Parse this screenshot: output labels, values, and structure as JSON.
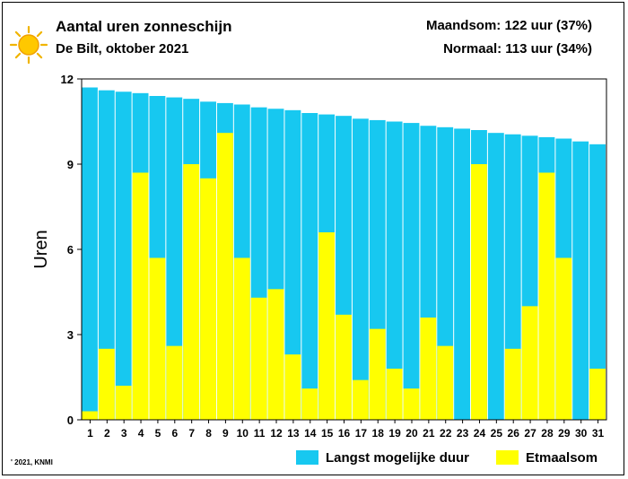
{
  "header": {
    "title": "Aantal uren zonneschijn",
    "subtitle": "De Bilt, oktober 2021",
    "month_total": "Maandsom: 122 uur (37%)",
    "normal": "Normaal: 113 uur (34%)"
  },
  "footer": {
    "copyright": "' 2021, KNMI"
  },
  "icons": {
    "logo": "sun-icon"
  },
  "colors": {
    "possible": "#17c8f0",
    "actual": "#ffff00",
    "axis": "#000000"
  },
  "chart_data": {
    "type": "bar",
    "title": "Aantal uren zonneschijn",
    "subtitle": "De Bilt, oktober 2021",
    "ylabel": "Uren",
    "xlabel": "",
    "ylim": [
      0,
      12
    ],
    "yticks": [
      0,
      3,
      6,
      9,
      12
    ],
    "grid": false,
    "legend_placement": "bottom",
    "overlay": true,
    "categories": [
      "1",
      "2",
      "3",
      "4",
      "5",
      "6",
      "7",
      "8",
      "9",
      "10",
      "11",
      "12",
      "13",
      "14",
      "15",
      "16",
      "17",
      "18",
      "19",
      "20",
      "21",
      "22",
      "23",
      "24",
      "25",
      "26",
      "27",
      "28",
      "29",
      "30",
      "31"
    ],
    "series": [
      {
        "name": "Langst mogelijke duur",
        "color": "#17c8f0",
        "values": [
          11.7,
          11.6,
          11.55,
          11.5,
          11.4,
          11.35,
          11.3,
          11.2,
          11.15,
          11.1,
          11.0,
          10.95,
          10.9,
          10.8,
          10.75,
          10.7,
          10.6,
          10.55,
          10.5,
          10.45,
          10.35,
          10.3,
          10.25,
          10.2,
          10.1,
          10.05,
          10.0,
          9.95,
          9.9,
          9.8,
          9.7
        ]
      },
      {
        "name": "Etmaalsom",
        "color": "#ffff00",
        "values": [
          0.3,
          2.5,
          1.2,
          8.7,
          5.7,
          2.6,
          9.0,
          8.5,
          10.1,
          5.7,
          4.3,
          4.6,
          2.3,
          1.1,
          6.6,
          3.7,
          1.4,
          3.2,
          1.8,
          1.1,
          3.6,
          2.6,
          0.0,
          9.0,
          0.0,
          2.5,
          4.0,
          8.7,
          5.7,
          0.0,
          1.8
        ]
      }
    ]
  }
}
